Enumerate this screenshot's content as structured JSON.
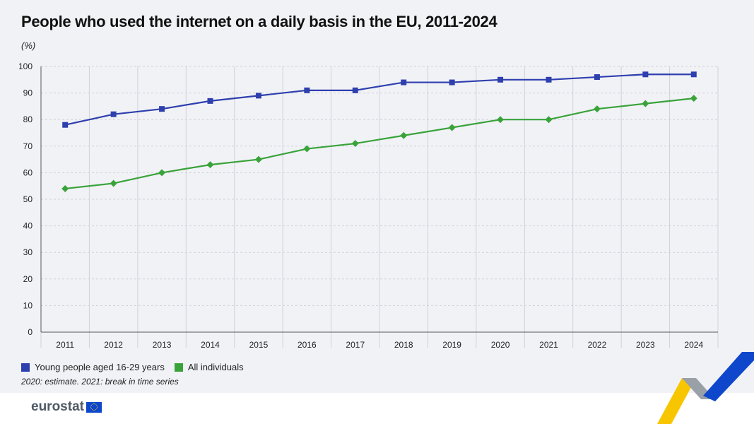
{
  "chart_data": {
    "type": "line",
    "title": "People who used the internet on a daily basis in the EU, 2011-2024",
    "unit_label": "(%)",
    "categories": [
      "2011",
      "2012",
      "2013",
      "2014",
      "2015",
      "2016",
      "2017",
      "2018",
      "2019",
      "2020",
      "2021",
      "2022",
      "2023",
      "2024"
    ],
    "series": [
      {
        "name": "Young people aged 16-29 years",
        "color": "#2e3fae",
        "marker": "square",
        "values": [
          78,
          82,
          84,
          87,
          89,
          91,
          91,
          94,
          94,
          95,
          95,
          96,
          97,
          97
        ]
      },
      {
        "name": "All individuals",
        "color": "#39a33a",
        "marker": "diamond",
        "values": [
          54,
          56,
          60,
          63,
          65,
          69,
          71,
          74,
          77,
          80,
          80,
          84,
          86,
          88
        ]
      }
    ],
    "ylim": [
      0,
      100
    ],
    "yticks": [
      0,
      10,
      20,
      30,
      40,
      50,
      60,
      70,
      80,
      90,
      100
    ],
    "grid": true,
    "legend_position": "bottom-left",
    "note": "2020: estimate. 2021: break in time series"
  },
  "footer": {
    "logo_text": "eurostat"
  },
  "colors": {
    "background": "#f1f2f6",
    "grid": "#cfd2d8",
    "deco_yellow": "#f7c600",
    "deco_blue": "#0e47cb",
    "deco_grey": "#9aa0a8"
  }
}
